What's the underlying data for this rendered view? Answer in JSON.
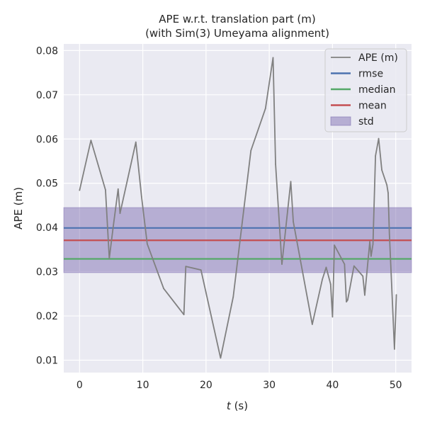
{
  "chart_data": {
    "type": "line",
    "title_line1": "APE w.r.t. translation part (m)",
    "title_line2": "(with Sim(3) Umeyama alignment)",
    "xlabel_italic": "t",
    "xlabel_rest": " (s)",
    "ylabel": "APE (m)",
    "xlim": [
      -2.5,
      52.5
    ],
    "ylim": [
      0.0072,
      0.0815
    ],
    "xticks": [
      0,
      10,
      20,
      30,
      40,
      50
    ],
    "xtick_labels": [
      "0",
      "10",
      "20",
      "30",
      "40",
      "50"
    ],
    "yticks": [
      0.01,
      0.02,
      0.03,
      0.04,
      0.05,
      0.06,
      0.07,
      0.08
    ],
    "ytick_labels": [
      "0.01",
      "0.02",
      "0.03",
      "0.04",
      "0.05",
      "0.06",
      "0.07",
      "0.08"
    ],
    "grid": true,
    "legend_position": "top-right",
    "series": [
      {
        "name": "APE (m)",
        "color": "#808080",
        "x": [
          0.0,
          1.8,
          4.1,
          4.7,
          5.3,
          6.1,
          6.4,
          8.9,
          9.8,
          10.7,
          13.3,
          16.5,
          16.8,
          19.2,
          22.3,
          24.3,
          27.1,
          29.4,
          30.6,
          31.0,
          32.0,
          33.4,
          33.8,
          36.8,
          38.4,
          39.0,
          39.7,
          40.0,
          40.3,
          41.9,
          42.2,
          42.4,
          43.4,
          44.8,
          45.1,
          45.9,
          46.1,
          46.4,
          46.8,
          47.3,
          47.8,
          48.6,
          48.8,
          49.0,
          49.8,
          50.1
        ],
        "y": [
          0.0484,
          0.0597,
          0.0485,
          0.033,
          0.0399,
          0.0487,
          0.0432,
          0.0593,
          0.047,
          0.0363,
          0.0262,
          0.0203,
          0.0312,
          0.0304,
          0.0105,
          0.0243,
          0.0574,
          0.0669,
          0.0784,
          0.0543,
          0.0317,
          0.0504,
          0.0413,
          0.0181,
          0.0283,
          0.031,
          0.0272,
          0.0198,
          0.036,
          0.0317,
          0.0232,
          0.0236,
          0.0313,
          0.029,
          0.0247,
          0.0368,
          0.0335,
          0.0362,
          0.0562,
          0.0601,
          0.053,
          0.0496,
          0.0478,
          0.0385,
          0.0125,
          0.0248
        ]
      }
    ],
    "reference_lines": [
      {
        "name": "rmse",
        "color": "#4c72b0",
        "y": 0.0399
      },
      {
        "name": "median",
        "color": "#55a868",
        "y": 0.0329
      },
      {
        "name": "mean",
        "color": "#c44e52",
        "y": 0.0371
      }
    ],
    "std_band": {
      "name": "std",
      "color": "#8172b3",
      "y_low": 0.0298,
      "y_high": 0.0445
    },
    "colors": {
      "plot_bg": "#eaeaf2",
      "grid": "#ffffff",
      "text": "#262626"
    }
  }
}
